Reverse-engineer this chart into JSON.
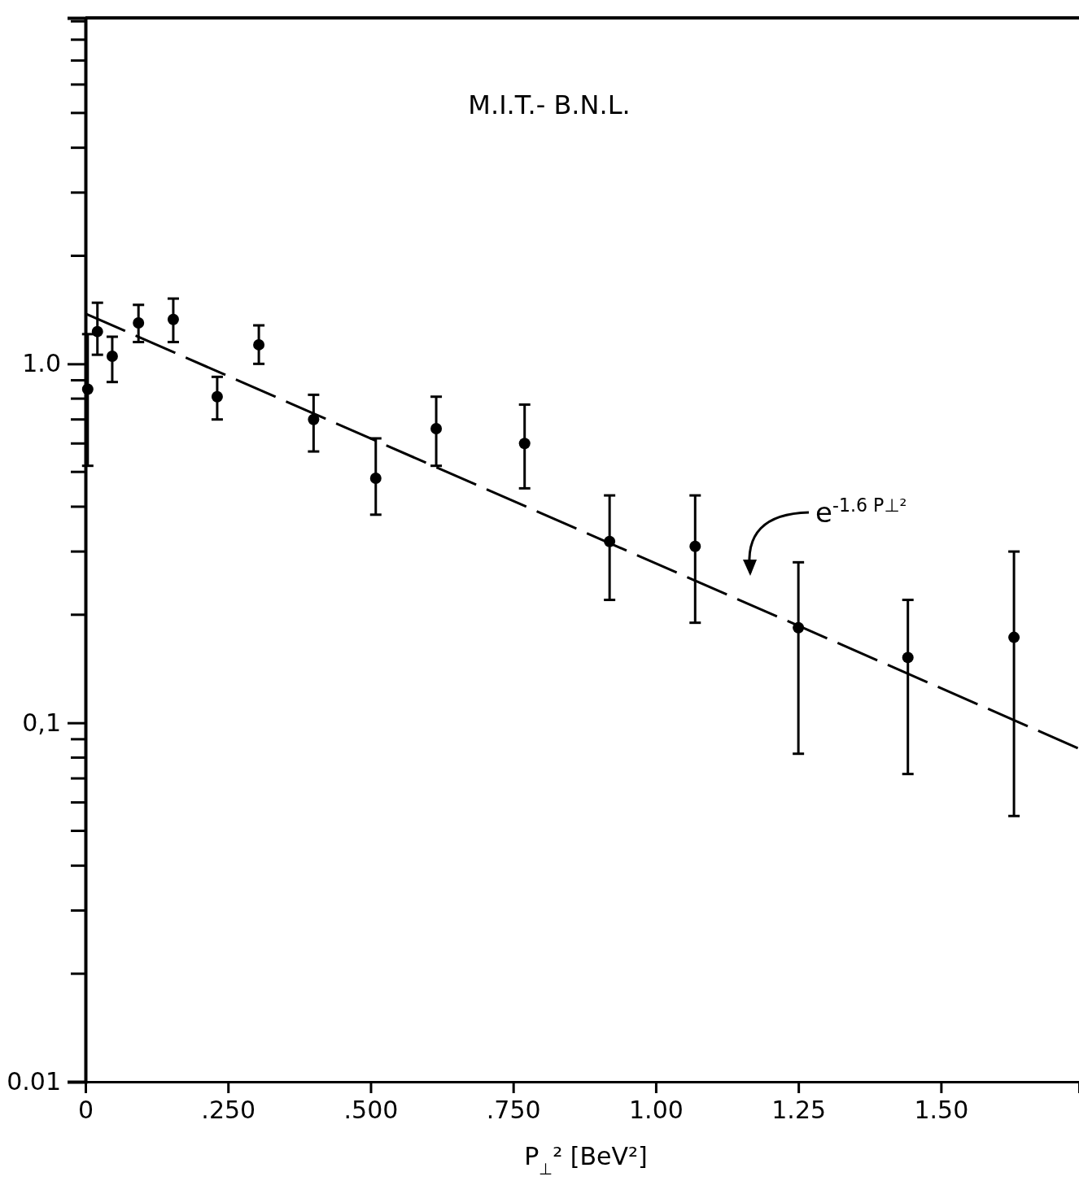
{
  "chart_data": {
    "type": "scatter",
    "title": "M.I.T.- B.N.L.",
    "xlabel": "P$_{⊥}$² [BeV²]",
    "x": [
      0.004,
      0.021,
      0.047,
      0.093,
      0.154,
      0.231,
      0.304,
      0.4,
      0.509,
      0.615,
      0.77,
      0.919,
      1.069,
      1.25,
      1.442,
      1.628
    ],
    "series": [
      {
        "type": "scatter",
        "color": "#000000",
        "marker": "circle",
        "values": [
          0.85,
          1.23,
          1.05,
          1.3,
          1.33,
          0.81,
          1.13,
          0.7,
          0.48,
          0.66,
          0.6,
          0.32,
          0.31,
          0.184,
          0.152,
          0.173
        ],
        "errors": [
          [
            0.52,
            1.21
          ],
          [
            1.06,
            1.48
          ],
          [
            0.89,
            1.19
          ],
          [
            1.15,
            1.46
          ],
          [
            1.15,
            1.52
          ],
          [
            0.7,
            0.92
          ],
          [
            1.0,
            1.28
          ],
          [
            0.57,
            0.82
          ],
          [
            0.38,
            0.62
          ],
          [
            0.52,
            0.81
          ],
          [
            0.45,
            0.77
          ],
          [
            0.22,
            0.43
          ],
          [
            0.19,
            0.43
          ],
          [
            0.082,
            0.28
          ],
          [
            0.072,
            0.22
          ],
          [
            0.055,
            0.3
          ]
        ]
      },
      {
        "type": "line",
        "color": "#000000",
        "line_style": "dashed",
        "marker": "none",
        "x": [
          0,
          1.74
        ],
        "values": [
          1.38,
          0.085
        ]
      }
    ],
    "annotations": [
      "e$^{-1.6 P⊥²}$"
    ],
    "log": "y",
    "grid": false,
    "xlim": [
      0,
      1.742
    ],
    "ylim": [
      0.01,
      9.2
    ],
    "xticks": [
      {
        "value": 0,
        "label": "0"
      },
      {
        "value": 0.25,
        "label": ".250"
      },
      {
        "value": 0.5,
        "label": ".500"
      },
      {
        "value": 0.75,
        "label": ".750"
      },
      {
        "value": 1.0,
        "label": "1.00"
      },
      {
        "value": 1.25,
        "label": "1.25"
      },
      {
        "value": 1.5,
        "label": "1.50"
      }
    ],
    "yticks": [
      {
        "value": 0.01,
        "label": "0.01"
      },
      {
        "value": 0.1,
        "label": "0,1"
      },
      {
        "value": 1.0,
        "label": "1.0"
      }
    ]
  }
}
